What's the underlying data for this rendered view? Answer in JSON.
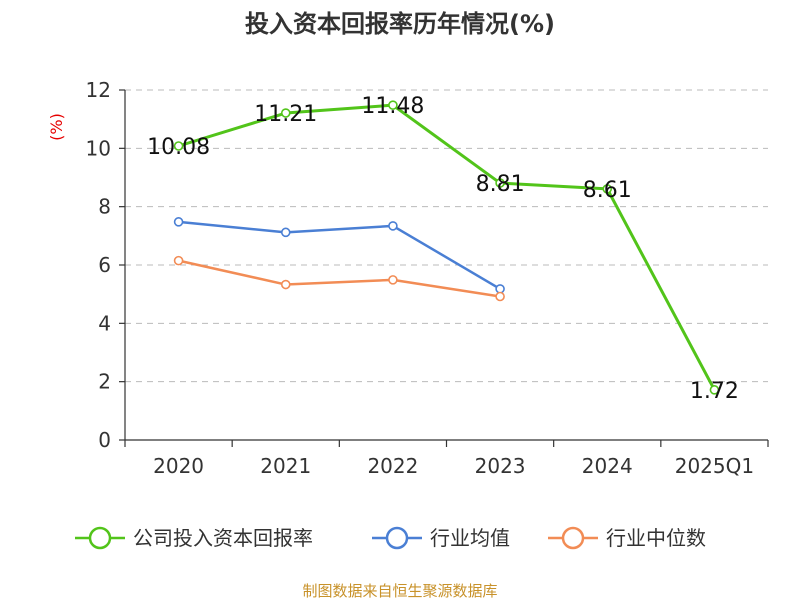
{
  "chart_data": {
    "type": "line",
    "title": "投入资本回报率历年情况(%)",
    "ylabel": "(%)",
    "xlabel": "",
    "ylim": [
      0,
      12
    ],
    "yticks": [
      0,
      2,
      4,
      6,
      8,
      10,
      12
    ],
    "categories": [
      "2020",
      "2021",
      "2022",
      "2023",
      "2024",
      "2025Q1"
    ],
    "grid": true,
    "legend_position": "bottom",
    "series": [
      {
        "name": "公司投入资本回报率",
        "color": "#52c41a",
        "values": [
          10.08,
          11.21,
          11.48,
          8.81,
          8.61,
          1.72
        ],
        "labels": [
          "10.08",
          "11.21",
          "11.48",
          "8.81",
          "8.61",
          "1.72"
        ]
      },
      {
        "name": "行业均值",
        "color": "#4a7fd4",
        "values": [
          7.48,
          7.12,
          7.34,
          5.18,
          null,
          null
        ]
      },
      {
        "name": "行业中位数",
        "color": "#f28c55",
        "values": [
          6.15,
          5.33,
          5.49,
          4.92,
          null,
          null
        ]
      }
    ],
    "source": "制图数据来自恒生聚源数据库"
  }
}
